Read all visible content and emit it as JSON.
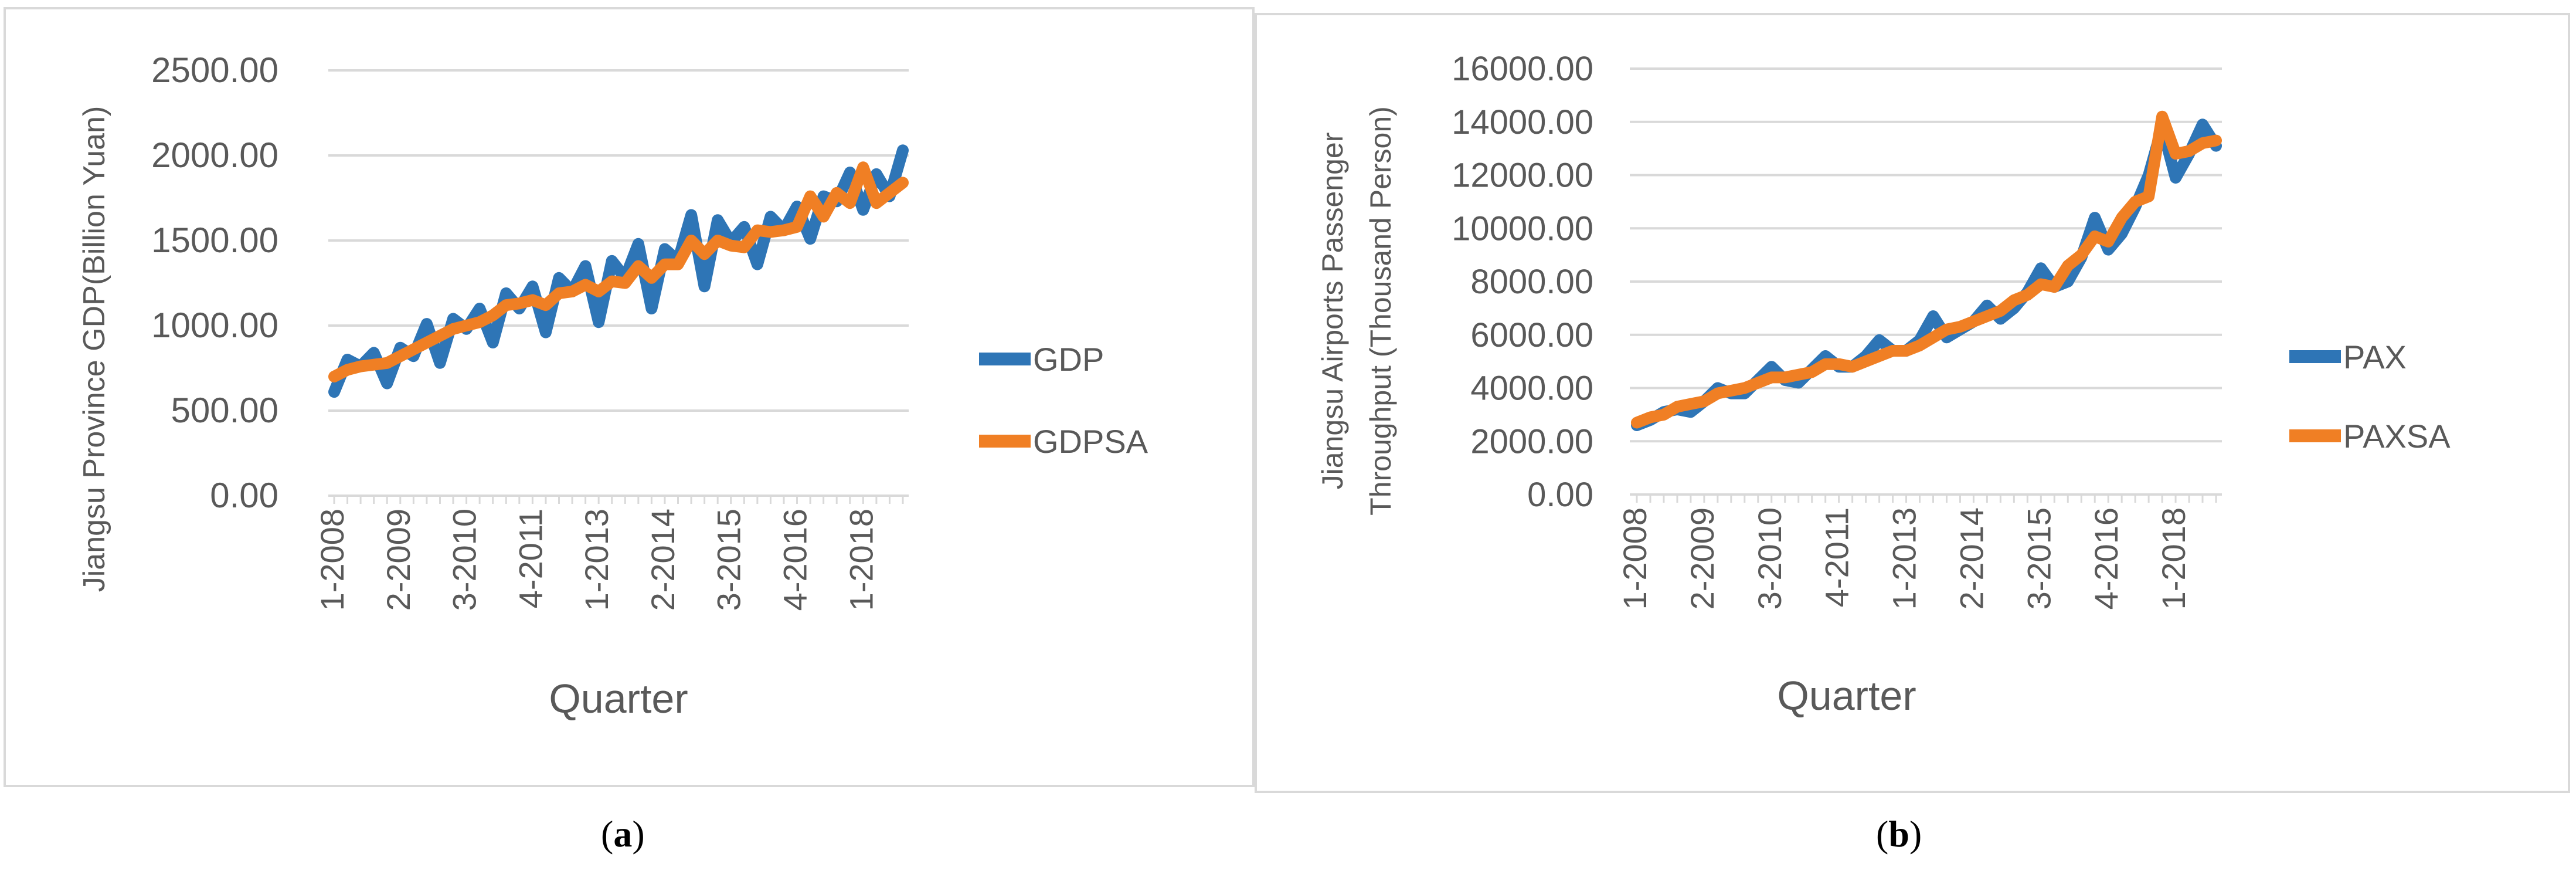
{
  "captions": {
    "a": "a",
    "b": "b"
  },
  "chart_data": [
    {
      "type": "line",
      "title": "",
      "xlabel": "Quarter",
      "ylabel": "Jiangsu Province GDP(Billion Yuan)",
      "ylim": [
        0,
        2500
      ],
      "yticks": [
        "0.00",
        "500.00",
        "1000.00",
        "1500.00",
        "2000.00",
        "2500.00"
      ],
      "tick_labels": [
        "1-2008",
        "2-2009",
        "3-2010",
        "4-2011",
        "1-2013",
        "2-2014",
        "3-2015",
        "4-2016",
        "1-2018"
      ],
      "tick_indices": [
        0,
        5,
        10,
        15,
        20,
        25,
        30,
        35,
        40
      ],
      "legend": "right",
      "series": [
        {
          "name": "GDP",
          "color": "#2e75b6",
          "values": [
            610,
            800,
            760,
            840,
            660,
            870,
            820,
            1010,
            780,
            1040,
            980,
            1100,
            900,
            1190,
            1100,
            1230,
            960,
            1280,
            1200,
            1350,
            1020,
            1380,
            1280,
            1480,
            1100,
            1450,
            1380,
            1650,
            1230,
            1620,
            1490,
            1580,
            1360,
            1640,
            1560,
            1700,
            1510,
            1760,
            1730,
            1900,
            1680,
            1890,
            1760,
            2030
          ]
        },
        {
          "name": "GDPSA",
          "color": "#f07f24",
          "values": [
            700,
            740,
            760,
            770,
            780,
            820,
            860,
            900,
            940,
            980,
            1000,
            1020,
            1060,
            1120,
            1130,
            1150,
            1120,
            1190,
            1200,
            1240,
            1200,
            1260,
            1250,
            1350,
            1280,
            1360,
            1360,
            1500,
            1420,
            1500,
            1470,
            1460,
            1560,
            1550,
            1560,
            1580,
            1760,
            1640,
            1780,
            1720,
            1930,
            1720,
            1780,
            1840
          ]
        }
      ]
    },
    {
      "type": "line",
      "title": "",
      "xlabel": "Quarter",
      "ylabel_line1": "Jiangsu Airports Passenger",
      "ylabel_line2": "Throughput (Thousand Person)",
      "ylim": [
        0,
        16000
      ],
      "yticks": [
        "0.00",
        "2000.00",
        "4000.00",
        "6000.00",
        "8000.00",
        "10000.00",
        "12000.00",
        "14000.00",
        "16000.00"
      ],
      "tick_labels": [
        "1-2008",
        "2-2009",
        "3-2010",
        "4-2011",
        "1-2013",
        "2-2014",
        "3-2015",
        "4-2016",
        "1-2018"
      ],
      "tick_indices": [
        0,
        5,
        10,
        15,
        20,
        25,
        30,
        35,
        40
      ],
      "legend": "right",
      "series": [
        {
          "name": "PAX",
          "color": "#2e75b6",
          "values": [
            2600,
            2800,
            3100,
            3200,
            3100,
            3500,
            4000,
            3800,
            3800,
            4300,
            4800,
            4300,
            4200,
            4700,
            5200,
            4800,
            4800,
            5200,
            5800,
            5400,
            5400,
            5800,
            6700,
            5900,
            6200,
            6500,
            7100,
            6600,
            7000,
            7600,
            8500,
            7800,
            8000,
            8900,
            10400,
            9200,
            9800,
            10800,
            12000,
            13800,
            11900,
            12800,
            13900,
            13100
          ]
        },
        {
          "name": "PAXSA",
          "color": "#f07f24",
          "values": [
            2700,
            2900,
            3000,
            3300,
            3400,
            3500,
            3800,
            3900,
            4000,
            4200,
            4400,
            4400,
            4500,
            4600,
            4900,
            4900,
            4800,
            5000,
            5200,
            5400,
            5400,
            5600,
            5900,
            6200,
            6300,
            6500,
            6700,
            6900,
            7300,
            7500,
            7900,
            7800,
            8600,
            9000,
            9700,
            9500,
            10400,
            11000,
            11200,
            14200,
            12800,
            12900,
            13200,
            13300
          ]
        }
      ]
    }
  ]
}
